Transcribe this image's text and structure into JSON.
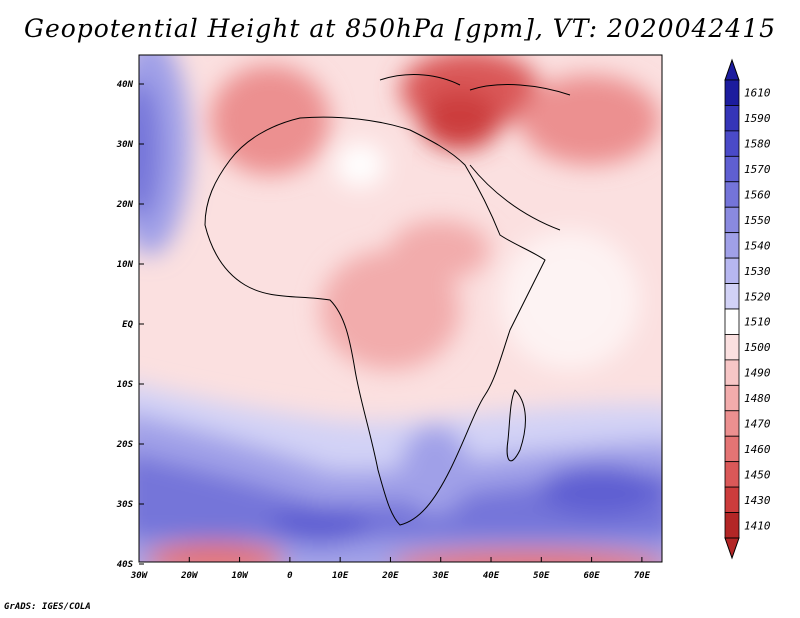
{
  "title": "Geopotential Height at 850hPa [gpm], VT: 2020042415",
  "credit": "GrADS: IGES/COLA",
  "map": {
    "lon_labels": [
      "30W",
      "20W",
      "10W",
      "0",
      "10E",
      "20E",
      "30E",
      "40E",
      "50E",
      "60E",
      "70E"
    ],
    "lat_labels": [
      "40N",
      "30N",
      "20N",
      "10N",
      "EQ",
      "10S",
      "20S",
      "30S",
      "40S"
    ]
  },
  "colorbar": {
    "levels": [
      "1610",
      "1590",
      "1580",
      "1570",
      "1560",
      "1550",
      "1540",
      "1530",
      "1520",
      "1510",
      "1500",
      "1490",
      "1480",
      "1470",
      "1460",
      "1450",
      "1430",
      "1410"
    ],
    "colors": [
      "#1c1c9e",
      "#3535b8",
      "#4a4ac8",
      "#5f5fd2",
      "#7474d9",
      "#8a8ae0",
      "#a0a0e8",
      "#b7b7f0",
      "#d2d2f6",
      "#ffffff",
      "#fbe0e0",
      "#f7c6c6",
      "#f2acac",
      "#ec9090",
      "#e47474",
      "#da5858",
      "#cc3c3c",
      "#b32626"
    ]
  }
}
